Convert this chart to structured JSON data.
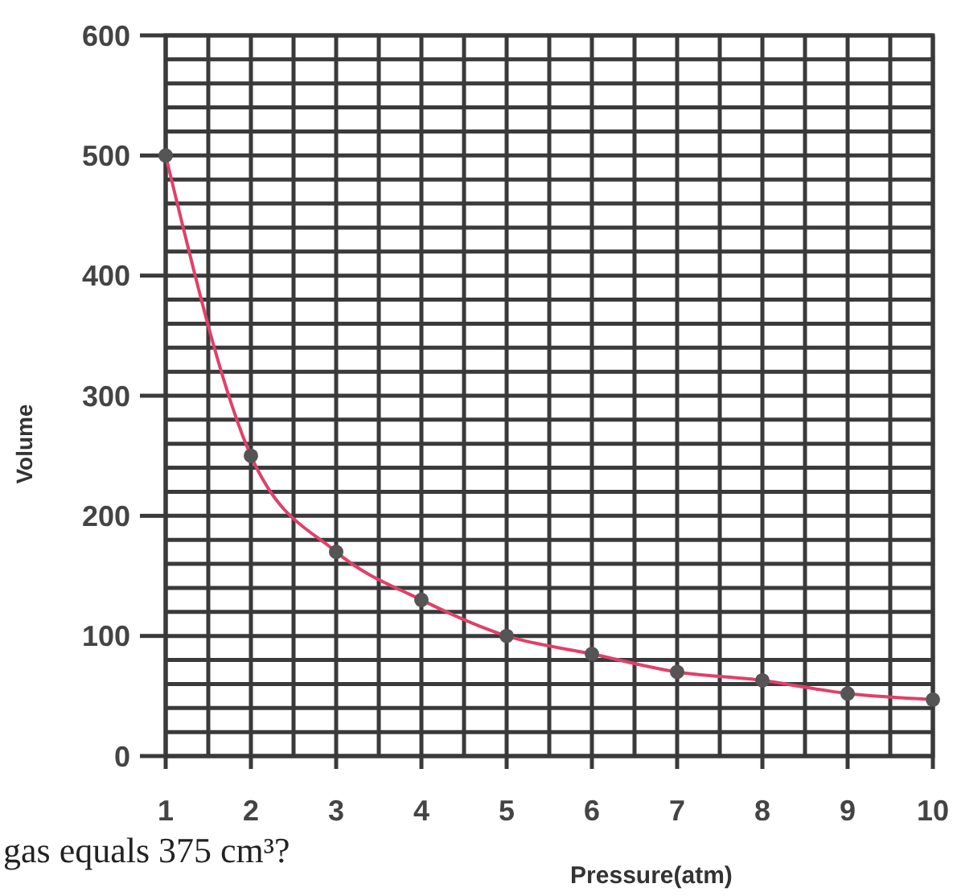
{
  "chart_data": {
    "type": "scatter",
    "xlabel": "Pressure(atm)",
    "ylabel": "Volume",
    "annotations": [
      "gas equals 375 cm³?"
    ],
    "series": [
      {
        "type": "line",
        "color": "#e0406a",
        "x": [
          1,
          2,
          3,
          4,
          5,
          6,
          7,
          8,
          9,
          10
        ],
        "values": [
          500,
          250,
          170,
          130,
          100,
          85,
          70,
          63,
          52,
          47
        ],
        "marker": "none"
      },
      {
        "color": "#555555",
        "x": [
          1,
          2,
          3,
          4,
          5,
          6,
          7,
          8,
          9,
          10
        ],
        "values": [
          500,
          250,
          170,
          130,
          100,
          85,
          70,
          63,
          52,
          47
        ],
        "marker": "circle"
      }
    ],
    "xlim": [
      1,
      10
    ],
    "xticks": [
      1,
      {
        "value": 1.5,
        "label": null
      },
      2,
      {
        "value": 2.5,
        "label": null
      },
      3,
      {
        "value": 3.5,
        "label": null
      },
      4,
      {
        "value": 4.5,
        "label": null
      },
      5,
      {
        "value": 5.5,
        "label": null
      },
      6,
      {
        "value": 6.5,
        "label": null
      },
      7,
      {
        "value": 7.5,
        "label": null
      },
      8,
      {
        "value": 8.5,
        "label": null
      },
      9,
      {
        "value": 9.5,
        "label": null
      },
      10
    ],
    "ylim": [
      0,
      600
    ],
    "yticks": [
      0,
      {
        "value": 20,
        "label": null
      },
      {
        "value": 40,
        "label": null
      },
      {
        "value": 60,
        "label": null
      },
      {
        "value": 80,
        "label": null
      },
      100,
      {
        "value": 120,
        "label": null
      },
      {
        "value": 140,
        "label": null
      },
      {
        "value": 160,
        "label": null
      },
      {
        "value": 180,
        "label": null
      },
      200,
      {
        "value": 220,
        "label": null
      },
      {
        "value": 240,
        "label": null
      },
      {
        "value": 260,
        "label": null
      },
      {
        "value": 280,
        "label": null
      },
      300,
      {
        "value": 320,
        "label": null
      },
      {
        "value": 340,
        "label": null
      },
      {
        "value": 360,
        "label": null
      },
      {
        "value": 380,
        "label": null
      },
      400,
      {
        "value": 420,
        "label": null
      },
      {
        "value": 440,
        "label": null
      },
      {
        "value": 460,
        "label": null
      },
      {
        "value": 480,
        "label": null
      },
      500,
      {
        "value": 520,
        "label": null
      },
      {
        "value": 540,
        "label": null
      },
      {
        "value": 560,
        "label": null
      },
      {
        "value": 580,
        "label": null
      },
      600
    ],
    "grid": true
  }
}
